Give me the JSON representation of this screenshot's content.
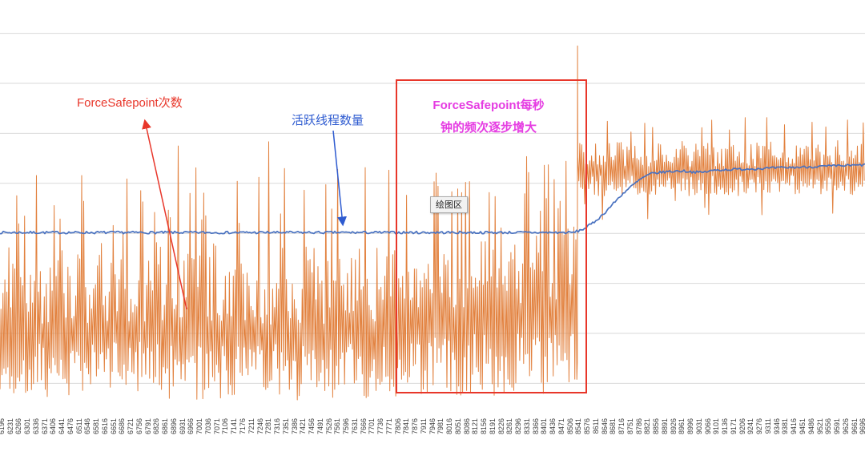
{
  "window": {
    "background": "#ffffff"
  },
  "chart_data": {
    "type": "line",
    "title": "",
    "xlabel": "",
    "ylabel": "",
    "legend_position": "none",
    "x_range": [
      6190,
      9705
    ],
    "ylim": [
      0,
      100
    ],
    "y_tick_labels_visible": false,
    "x_tick_interval": 35,
    "x_tick_labels": [
      "6196",
      "6231",
      "6266",
      "6301",
      "6336",
      "6371",
      "6406",
      "6441",
      "6476",
      "6511",
      "6546",
      "6581",
      "6616",
      "6651",
      "6686",
      "6721",
      "6756",
      "6791",
      "6826",
      "6861",
      "6896",
      "6931",
      "6966",
      "7001",
      "7036",
      "7071",
      "7106",
      "7141",
      "7176",
      "7211",
      "7246",
      "7281",
      "7316",
      "7351",
      "7386",
      "7421",
      "7456",
      "7491",
      "7526",
      "7561",
      "7596",
      "7631",
      "7666",
      "7701",
      "7736",
      "7771",
      "7806",
      "7841",
      "7876",
      "7911",
      "7946",
      "7981",
      "8016",
      "8051",
      "8086",
      "8121",
      "8156",
      "8191",
      "8226",
      "8261",
      "8296",
      "8331",
      "8366",
      "8401",
      "8436",
      "8471",
      "8506",
      "8541",
      "8576",
      "8611",
      "8646",
      "8681",
      "8716",
      "8751",
      "8786",
      "8821",
      "8856",
      "8891",
      "8926",
      "8961",
      "8996",
      "9031",
      "9066",
      "9101",
      "9136",
      "9171",
      "9206",
      "9241",
      "9276",
      "9311",
      "9346",
      "9381",
      "9416",
      "9451",
      "9486",
      "9521",
      "9556",
      "9591",
      "9626",
      "9661",
      "9696"
    ],
    "gridlines": {
      "y_values": [
        8,
        20,
        32,
        44,
        56,
        68,
        80,
        92
      ],
      "color": "#d9d9d9"
    },
    "series": [
      {
        "name": "ForceSafepoint次数",
        "color": "#e2813e",
        "style": "noisy-spikes",
        "seed": 1337,
        "sample_step_x": 4,
        "segments": [
          {
            "x_from": 6190,
            "x_to": 7850,
            "low_min": 4,
            "low_max": 18,
            "high_min": 22,
            "high_max": 42,
            "spike_chance": 0.16,
            "spike_min": 44,
            "spike_max": 60,
            "rare_spike_chance": 0.012,
            "rare_spike_max": 69
          },
          {
            "x_from": 7850,
            "x_to": 8540,
            "ramp": true,
            "low_min": 5,
            "low_max": 20,
            "high_min": 26,
            "high_max": 54,
            "spike_chance": 0.32,
            "spike_min": 52,
            "spike_max": 64,
            "rare_spike_chance": 0.01,
            "rare_spike_max": 70
          },
          {
            "x_from": 8540,
            "x_to": 9705,
            "low_min": 53,
            "low_max": 58,
            "high_min": 60,
            "high_max": 66,
            "spike_chance": 0.1,
            "spike_min": 66,
            "spike_max": 73,
            "dip_chance": 0.06,
            "dip_min": 47,
            "dip_max": 52
          }
        ],
        "transition_spike": {
          "x": 8537,
          "top": 89,
          "bottom": 13
        }
      },
      {
        "name": "活跃线程数量",
        "color": "#4a72c0",
        "style": "smooth-line",
        "seed": 7,
        "noise": 0.3,
        "anchors": [
          [
            6190,
            44.2
          ],
          [
            8520,
            44.2
          ],
          [
            8560,
            45.0
          ],
          [
            8600,
            46.5
          ],
          [
            8640,
            48.5
          ],
          [
            8680,
            51.0
          ],
          [
            8720,
            53.5
          ],
          [
            8760,
            55.5
          ],
          [
            8800,
            57.3
          ],
          [
            8840,
            58.4
          ],
          [
            8900,
            58.8
          ],
          [
            8960,
            59.0
          ],
          [
            9040,
            58.6
          ],
          [
            9100,
            59.2
          ],
          [
            9200,
            59.4
          ],
          [
            9300,
            59.6
          ],
          [
            9450,
            59.9
          ],
          [
            9600,
            60.2
          ],
          [
            9705,
            60.4
          ]
        ]
      }
    ]
  },
  "annotations": {
    "force_safepoint": {
      "text": "ForceSafepoint次数",
      "color": "#e8362a"
    },
    "active_threads": {
      "text": "活跃线程数量",
      "color": "#2e5bd0"
    },
    "frequency_note": {
      "line1": "ForceSafepoint每秒",
      "line2": "钟的频次逐步增大",
      "color": "#e53ce2"
    },
    "plot_area_tooltip": {
      "text": "绘图区"
    },
    "highlight_box": {
      "color": "#e8362a"
    }
  }
}
